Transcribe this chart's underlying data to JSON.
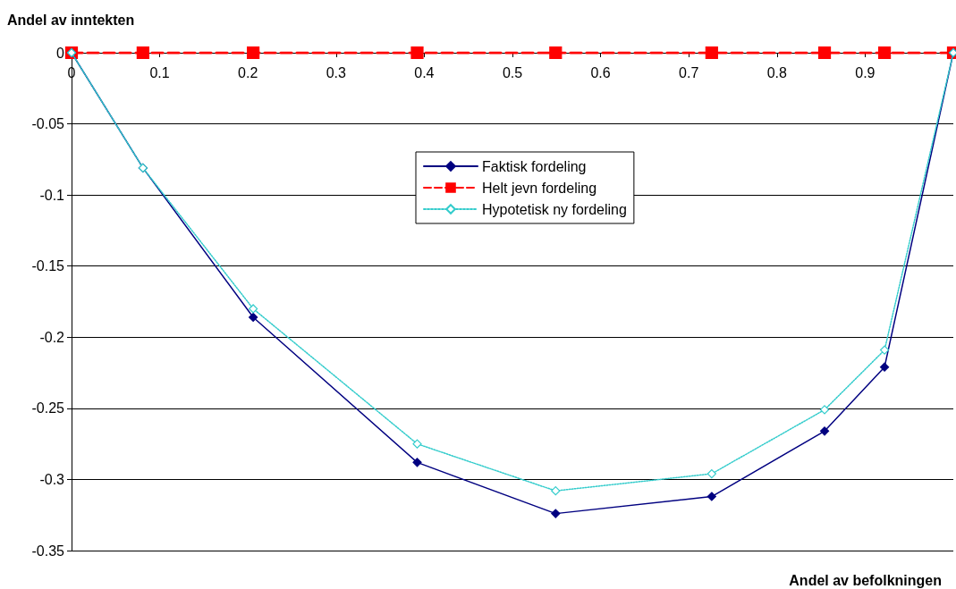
{
  "chart_data": {
    "type": "line",
    "xlabel": "Andel av befolkningen",
    "ylabel": "Andel av inntekten",
    "x": [
      0,
      0.081,
      0.206,
      0.392,
      0.549,
      0.726,
      0.854,
      0.922,
      1
    ],
    "series": [
      {
        "name": "Faktisk fordeling",
        "color": "#000080",
        "marker": "diamond",
        "line_style": "solid",
        "values": [
          0,
          -0.081,
          -0.186,
          -0.288,
          -0.324,
          -0.312,
          -0.266,
          -0.221,
          0
        ]
      },
      {
        "name": "Helt jevn fordeling",
        "color": "#ff0000",
        "marker": "square",
        "line_style": "dashed",
        "values": [
          0,
          0,
          0,
          0,
          0,
          0,
          0,
          0,
          0
        ]
      },
      {
        "name": "Hypotetisk ny fordeling",
        "color": "#33cccc",
        "marker": "diamond",
        "line_style": "dotted",
        "values": [
          0,
          -0.081,
          -0.18,
          -0.275,
          -0.308,
          -0.296,
          -0.251,
          -0.209,
          0
        ]
      }
    ],
    "xlim": [
      0,
      1
    ],
    "xticks": [
      0,
      0.1,
      0.2,
      0.3,
      0.4,
      0.5,
      0.6,
      0.7,
      0.8,
      0.9,
      {
        "value": 1,
        "label": null
      }
    ],
    "ylim": [
      -0.35,
      0
    ],
    "yticks": [
      -0.35,
      -0.3,
      -0.25,
      -0.2,
      -0.15,
      -0.1,
      -0.05,
      0
    ],
    "grid": "y",
    "legend": "top"
  }
}
